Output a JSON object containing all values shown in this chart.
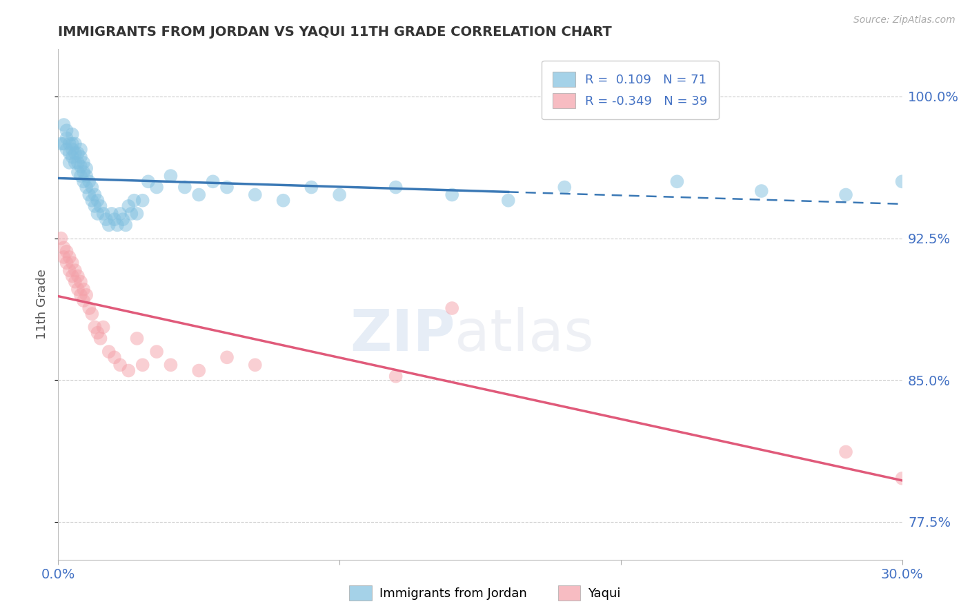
{
  "title": "IMMIGRANTS FROM JORDAN VS YAQUI 11TH GRADE CORRELATION CHART",
  "source_text": "Source: ZipAtlas.com",
  "ylabel": "11th Grade",
  "xlim": [
    0.0,
    0.3
  ],
  "ylim": [
    0.755,
    1.025
  ],
  "yticks": [
    0.775,
    0.85,
    0.925,
    1.0
  ],
  "ytick_labels": [
    "77.5%",
    "85.0%",
    "92.5%",
    "100.0%"
  ],
  "xtick_labels": [
    "0.0%",
    "",
    "",
    "30.0%"
  ],
  "legend_R_blue": "R =  0.109",
  "legend_N_blue": "N = 71",
  "legend_R_pink": "R = -0.349",
  "legend_N_pink": "N = 39",
  "legend_label_blue": "Immigrants from Jordan",
  "legend_label_pink": "Yaqui",
  "watermark_zip": "ZIP",
  "watermark_atlas": "atlas",
  "blue_color": "#7fbfdf",
  "pink_color": "#f4a0a8",
  "trend_blue_color": "#3a78b5",
  "trend_pink_color": "#e05a7a",
  "background_color": "#ffffff",
  "grid_color": "#cccccc",
  "tick_label_color": "#4472c4",
  "title_color": "#333333",
  "blue_scatter_x": [
    0.001,
    0.002,
    0.002,
    0.003,
    0.003,
    0.003,
    0.004,
    0.004,
    0.004,
    0.005,
    0.005,
    0.005,
    0.005,
    0.006,
    0.006,
    0.006,
    0.007,
    0.007,
    0.007,
    0.008,
    0.008,
    0.008,
    0.008,
    0.009,
    0.009,
    0.009,
    0.01,
    0.01,
    0.01,
    0.011,
    0.011,
    0.012,
    0.012,
    0.013,
    0.013,
    0.014,
    0.014,
    0.015,
    0.016,
    0.017,
    0.018,
    0.019,
    0.02,
    0.021,
    0.022,
    0.023,
    0.024,
    0.025,
    0.026,
    0.027,
    0.028,
    0.03,
    0.032,
    0.035,
    0.04,
    0.045,
    0.05,
    0.055,
    0.06,
    0.07,
    0.08,
    0.09,
    0.1,
    0.12,
    0.14,
    0.16,
    0.18,
    0.22,
    0.25,
    0.28,
    0.3
  ],
  "blue_scatter_y": [
    0.975,
    0.985,
    0.975,
    0.972,
    0.978,
    0.982,
    0.97,
    0.975,
    0.965,
    0.972,
    0.968,
    0.975,
    0.98,
    0.965,
    0.97,
    0.975,
    0.96,
    0.965,
    0.97,
    0.958,
    0.963,
    0.968,
    0.972,
    0.955,
    0.96,
    0.965,
    0.952,
    0.958,
    0.962,
    0.948,
    0.955,
    0.945,
    0.952,
    0.942,
    0.948,
    0.938,
    0.945,
    0.942,
    0.938,
    0.935,
    0.932,
    0.938,
    0.935,
    0.932,
    0.938,
    0.935,
    0.932,
    0.942,
    0.938,
    0.945,
    0.938,
    0.945,
    0.955,
    0.952,
    0.958,
    0.952,
    0.948,
    0.955,
    0.952,
    0.948,
    0.945,
    0.952,
    0.948,
    0.952,
    0.948,
    0.945,
    0.952,
    0.955,
    0.95,
    0.948,
    0.955
  ],
  "pink_scatter_x": [
    0.001,
    0.002,
    0.002,
    0.003,
    0.003,
    0.004,
    0.004,
    0.005,
    0.005,
    0.006,
    0.006,
    0.007,
    0.007,
    0.008,
    0.008,
    0.009,
    0.009,
    0.01,
    0.011,
    0.012,
    0.013,
    0.014,
    0.015,
    0.016,
    0.018,
    0.02,
    0.022,
    0.025,
    0.028,
    0.03,
    0.035,
    0.04,
    0.05,
    0.06,
    0.07,
    0.12,
    0.14,
    0.28,
    0.3
  ],
  "pink_scatter_y": [
    0.925,
    0.915,
    0.92,
    0.912,
    0.918,
    0.908,
    0.915,
    0.905,
    0.912,
    0.902,
    0.908,
    0.898,
    0.905,
    0.895,
    0.902,
    0.892,
    0.898,
    0.895,
    0.888,
    0.885,
    0.878,
    0.875,
    0.872,
    0.878,
    0.865,
    0.862,
    0.858,
    0.855,
    0.872,
    0.858,
    0.865,
    0.858,
    0.855,
    0.862,
    0.858,
    0.852,
    0.888,
    0.812,
    0.798
  ],
  "trend_blue_start_x": 0.0,
  "trend_blue_solid_end_x": 0.16,
  "trend_blue_dashed_end_x": 0.3,
  "trend_pink_start_x": 0.0,
  "trend_pink_end_x": 0.3
}
